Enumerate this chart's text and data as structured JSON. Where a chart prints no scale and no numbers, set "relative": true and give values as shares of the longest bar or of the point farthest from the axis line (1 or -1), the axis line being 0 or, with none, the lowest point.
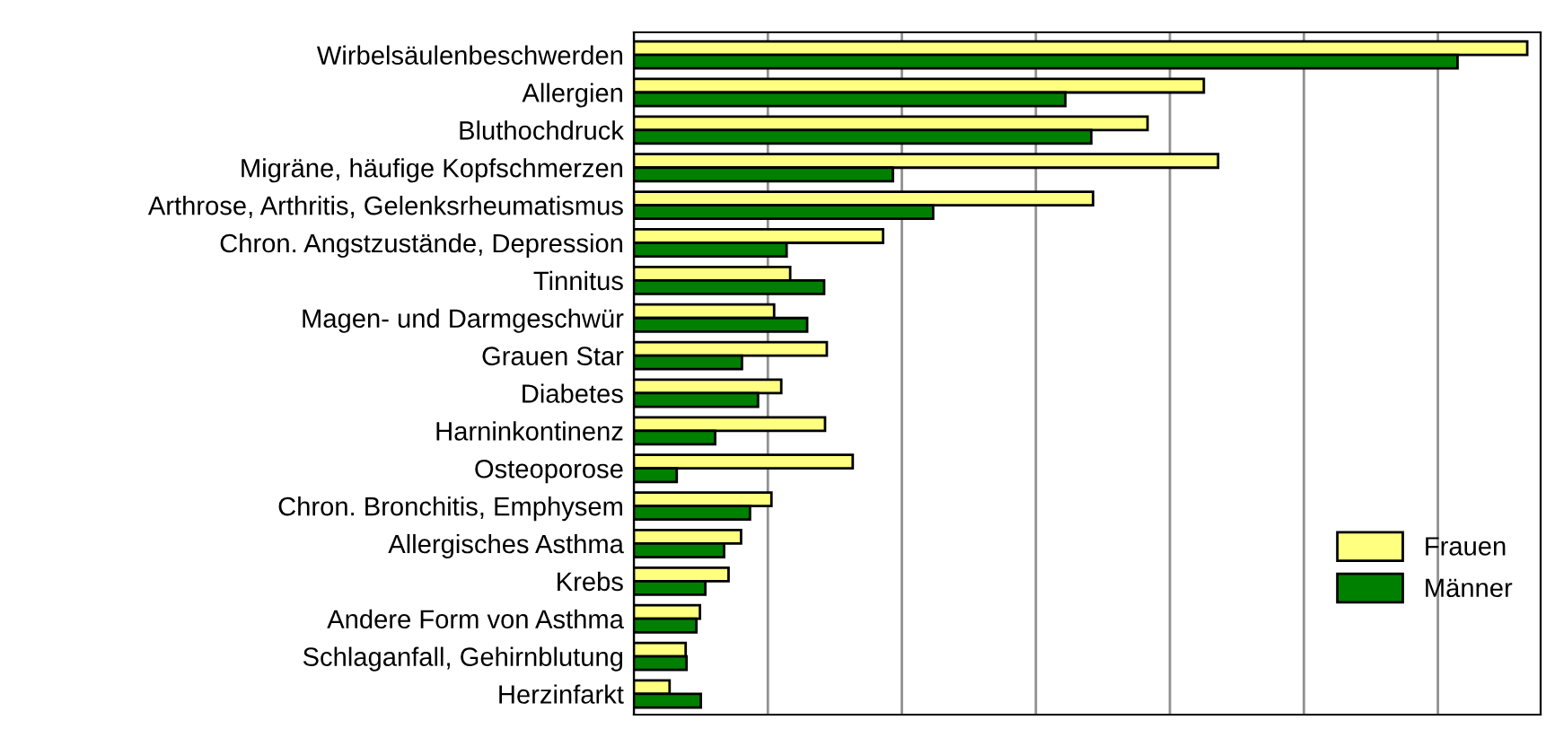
{
  "chart_data": {
    "type": "bar",
    "orientation": "horizontal",
    "relative": true,
    "grid": "x",
    "legend": "bottom right",
    "categories": [
      "Wirbelsäulenbeschwerden",
      "Allergien",
      "Bluthochdruck",
      "Migräne, häufige Kopfschmerzen",
      "Arthrose, Arthritis, Gelenksrheumatismus",
      "Chron. Angstzustände, Depression",
      "Tinnitus",
      "Magen- und Darmgeschwür",
      "Grauen Star",
      "Diabetes",
      "Harninkontinenz",
      "Osteoporose",
      "Chron. Bronchitis, Emphysem",
      "Allergisches Asthma",
      "Krebs",
      "Andere Form von Asthma",
      "Schlaganfall, Gehirnblutung",
      "Herzinfarkt"
    ],
    "series": [
      {
        "name": "Frauen",
        "color": "#ffff80",
        "values": [
          1.0,
          0.638,
          0.575,
          0.654,
          0.514,
          0.279,
          0.175,
          0.157,
          0.216,
          0.165,
          0.214,
          0.245,
          0.154,
          0.12,
          0.106,
          0.074,
          0.058,
          0.04
        ]
      },
      {
        "name": "Männer",
        "color": "#008000",
        "values": [
          0.922,
          0.483,
          0.512,
          0.29,
          0.335,
          0.171,
          0.213,
          0.194,
          0.121,
          0.139,
          0.091,
          0.048,
          0.13,
          0.101,
          0.08,
          0.07,
          0.059,
          0.075
        ]
      }
    ]
  }
}
